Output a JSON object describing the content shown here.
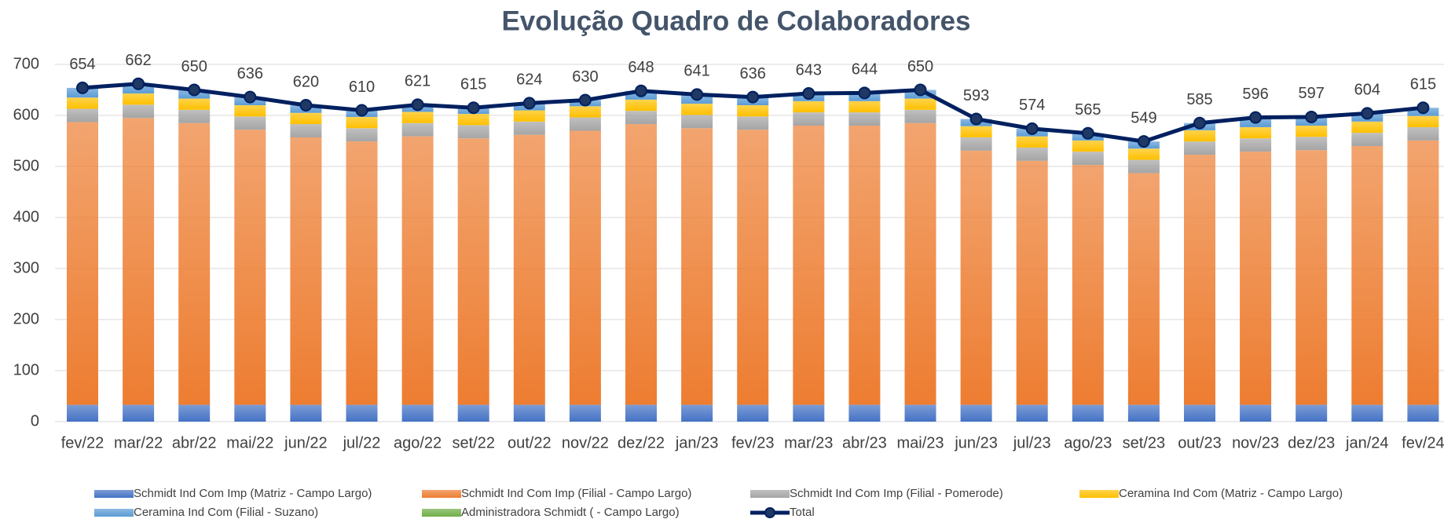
{
  "chart_data": {
    "type": "stacked_bar_line",
    "title": "Evolução Quadro de Colaboradores",
    "categories": [
      "fev/22",
      "mar/22",
      "abr/22",
      "mai/22",
      "jun/22",
      "jul/22",
      "ago/22",
      "set/22",
      "out/22",
      "nov/22",
      "dez/22",
      "jan/23",
      "fev/23",
      "mar/23",
      "abr/23",
      "mai/23",
      "jun/23",
      "jul/23",
      "ago/23",
      "set/23",
      "out/23",
      "nov/23",
      "dez/23",
      "jan/24",
      "fev/24"
    ],
    "series": [
      {
        "name": "Schmidt Ind Com Imp (Matriz - Campo Largo)",
        "color": "#4472c4",
        "values": [
          33,
          33,
          33,
          33,
          33,
          33,
          33,
          33,
          33,
          33,
          33,
          33,
          33,
          33,
          33,
          33,
          33,
          33,
          33,
          33,
          33,
          33,
          33,
          33,
          33
        ]
      },
      {
        "name": "Schmidt Ind Com Imp (Filial - Campo Largo)",
        "color": "#ed7d31",
        "values": [
          554,
          562,
          552,
          539,
          524,
          516,
          526,
          522,
          529,
          537,
          550,
          542,
          539,
          547,
          547,
          552,
          498,
          478,
          470,
          454,
          490,
          496,
          499,
          507,
          518
        ]
      },
      {
        "name": "Schmidt Ind Com Imp (Filial - Pomerode)",
        "color": "#a5a5a5",
        "values": [
          26,
          26,
          26,
          26,
          26,
          26,
          26,
          26,
          26,
          26,
          26,
          26,
          26,
          26,
          26,
          26,
          26,
          26,
          26,
          26,
          26,
          26,
          26,
          26,
          26
        ]
      },
      {
        "name": "Ceramina Ind Com (Matriz - Campo Largo)",
        "color": "#ffc000",
        "values": [
          22,
          22,
          22,
          22,
          22,
          22,
          22,
          22,
          22,
          22,
          22,
          22,
          22,
          22,
          22,
          22,
          22,
          22,
          22,
          22,
          22,
          22,
          22,
          22,
          22
        ]
      },
      {
        "name": "Ceramina Ind Com (Filial - Suzano)",
        "color": "#5b9bd5",
        "values": [
          19,
          19,
          17,
          16,
          15,
          13,
          14,
          12,
          14,
          12,
          17,
          18,
          16,
          15,
          16,
          17,
          14,
          15,
          14,
          14,
          14,
          19,
          17,
          16,
          16
        ]
      },
      {
        "name": "Administradora Schmidt ( - Campo Largo)",
        "color": "#70ad47",
        "values": [
          0,
          0,
          0,
          0,
          0,
          0,
          0,
          0,
          0,
          0,
          0,
          0,
          0,
          0,
          0,
          0,
          0,
          0,
          0,
          0,
          0,
          0,
          0,
          0,
          0
        ]
      }
    ],
    "line": {
      "name": "Total",
      "color": "#002060",
      "values": [
        654,
        662,
        650,
        636,
        620,
        610,
        621,
        615,
        624,
        630,
        648,
        641,
        636,
        643,
        644,
        650,
        593,
        574,
        565,
        549,
        585,
        596,
        597,
        604,
        615
      ]
    },
    "ylim": [
      0,
      700
    ],
    "yticks": [
      0,
      100,
      200,
      300,
      400,
      500,
      600,
      700
    ],
    "grid": true
  }
}
